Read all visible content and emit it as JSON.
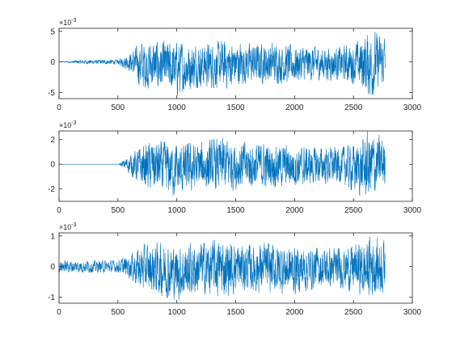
{
  "chart_data": [
    {
      "type": "line",
      "title": "",
      "xlabel": "",
      "ylabel": "",
      "xlim": [
        0,
        3000
      ],
      "ylim": [
        -0.006,
        0.0055
      ],
      "exponent_label": "×10",
      "exponent_power": "-3",
      "xticks": [
        0,
        500,
        1000,
        1500,
        2000,
        2500,
        3000
      ],
      "xtick_labels": [
        "0",
        "500",
        "1000",
        "1500",
        "2000",
        "2500",
        "3000"
      ],
      "yticks": [
        -0.005,
        0,
        0.005
      ],
      "ytick_labels": [
        "-5",
        "0",
        "5"
      ],
      "grid": false,
      "line_color": "#0072BD",
      "series_envelope": {
        "x": [
          0,
          150,
          500,
          600,
          700,
          800,
          1000,
          1200,
          1400,
          1600,
          1800,
          2000,
          2200,
          2400,
          2550,
          2600,
          2650,
          2700,
          2750,
          2770
        ],
        "y_max": [
          0,
          0.0003,
          0.0004,
          0.0015,
          0.0034,
          0.0035,
          0.0032,
          0.003,
          0.0035,
          0.003,
          0.0032,
          0.0028,
          0.0025,
          0.0025,
          0.0035,
          0.0052,
          0.005,
          0.0048,
          0.004,
          0.0048
        ],
        "y_min": [
          0,
          -0.0003,
          -0.0004,
          -0.0015,
          -0.0045,
          -0.0045,
          -0.0055,
          -0.004,
          -0.0045,
          -0.0035,
          -0.0035,
          -0.0035,
          -0.003,
          -0.003,
          -0.004,
          -0.0055,
          -0.006,
          -0.005,
          -0.004,
          -0.0035
        ]
      }
    },
    {
      "type": "line",
      "title": "",
      "xlabel": "",
      "ylabel": "",
      "xlim": [
        0,
        3000
      ],
      "ylim": [
        -0.003,
        0.0027
      ],
      "exponent_label": "×10",
      "exponent_power": "-3",
      "xticks": [
        0,
        500,
        1000,
        1500,
        2000,
        2500,
        3000
      ],
      "xtick_labels": [
        "0",
        "500",
        "1000",
        "1500",
        "2000",
        "2500",
        "3000"
      ],
      "yticks": [
        -0.002,
        0,
        0.002
      ],
      "ytick_labels": [
        "-2",
        "0",
        "2"
      ],
      "grid": false,
      "line_color": "#0072BD",
      "series_envelope": {
        "x": [
          0,
          500,
          520,
          600,
          700,
          800,
          1000,
          1200,
          1400,
          1600,
          1800,
          2000,
          2200,
          2400,
          2550,
          2620,
          2650,
          2700,
          2770
        ],
        "y_max": [
          0,
          0,
          0.0001,
          0.0008,
          0.0015,
          0.002,
          0.0016,
          0.0018,
          0.0022,
          0.0018,
          0.0017,
          0.0015,
          0.0014,
          0.0014,
          0.0018,
          0.0027,
          0.0026,
          0.0024,
          0.0022
        ],
        "y_min": [
          0,
          0,
          -0.0001,
          -0.0008,
          -0.0018,
          -0.0023,
          -0.0026,
          -0.0022,
          -0.0022,
          -0.002,
          -0.0019,
          -0.0018,
          -0.0016,
          -0.0016,
          -0.0025,
          -0.003,
          -0.003,
          -0.0025,
          -0.0018
        ]
      }
    },
    {
      "type": "line",
      "title": "",
      "xlabel": "",
      "ylabel": "",
      "xlim": [
        0,
        3000
      ],
      "ylim": [
        -0.0012,
        0.0011
      ],
      "exponent_label": "×10",
      "exponent_power": "-3",
      "xticks": [
        0,
        500,
        1000,
        1500,
        2000,
        2500,
        3000
      ],
      "xtick_labels": [
        "0",
        "500",
        "1000",
        "1500",
        "2000",
        "2500",
        "3000"
      ],
      "yticks": [
        -0.001,
        0,
        0.001
      ],
      "ytick_labels": [
        "-1",
        "0",
        "1"
      ],
      "grid": false,
      "line_color": "#0072BD",
      "series_envelope": {
        "x": [
          0,
          200,
          500,
          600,
          700,
          800,
          1000,
          1200,
          1400,
          1600,
          1800,
          2000,
          2200,
          2400,
          2550,
          2600,
          2650,
          2700,
          2770
        ],
        "y_max": [
          0.0002,
          0.0002,
          0.0002,
          0.0004,
          0.0007,
          0.0008,
          0.0007,
          0.0008,
          0.0009,
          0.0007,
          0.0008,
          0.0007,
          0.0006,
          0.0006,
          0.0008,
          0.0008,
          0.0011,
          0.001,
          0.0009
        ],
        "y_min": [
          -0.0002,
          -0.0002,
          -0.0002,
          -0.0004,
          -0.0008,
          -0.0009,
          -0.0011,
          -0.0009,
          -0.001,
          -0.0008,
          -0.0009,
          -0.0009,
          -0.0007,
          -0.0007,
          -0.0009,
          -0.0011,
          -0.001,
          -0.001,
          -0.0008
        ]
      }
    }
  ]
}
